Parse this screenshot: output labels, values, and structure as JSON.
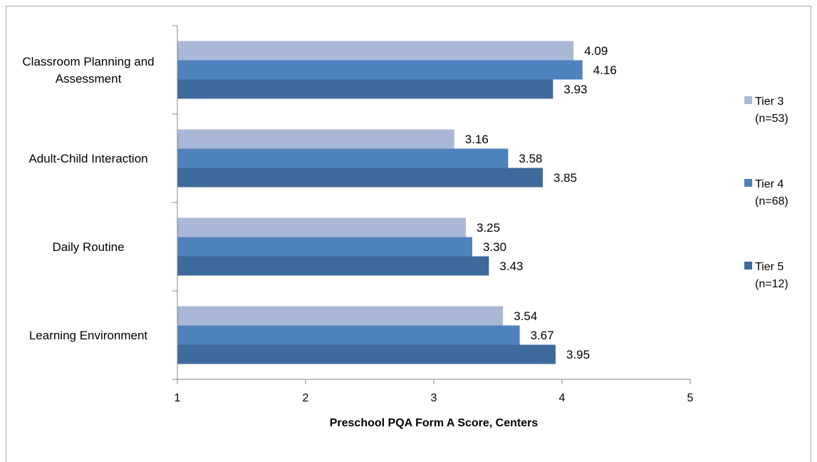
{
  "chart_data": {
    "type": "bar",
    "orientation": "horizontal",
    "categories": [
      [
        "Classroom Planning and",
        "Assessment"
      ],
      [
        "Adult-Child Interaction"
      ],
      [
        "Daily Routine"
      ],
      [
        "Learning Environment"
      ]
    ],
    "series": [
      {
        "name": "Tier 3",
        "sublabel": "(n=53)",
        "color": "#aab8d8",
        "values": [
          4.09,
          3.16,
          3.25,
          3.54
        ],
        "labels": [
          "4.09",
          "3.16",
          "3.25",
          "3.54"
        ]
      },
      {
        "name": "Tier 4",
        "sublabel": "(n=68)",
        "color": "#4f81bd",
        "values": [
          4.16,
          3.58,
          3.3,
          3.67
        ],
        "labels": [
          "4.16",
          "3.58",
          "3.30",
          "3.67"
        ]
      },
      {
        "name": "Tier 5",
        "sublabel": "(n=12)",
        "color": "#3e6a9c",
        "values": [
          3.93,
          3.85,
          3.43,
          3.95
        ],
        "labels": [
          "3.93",
          "3.85",
          "3.43",
          "3.95"
        ]
      }
    ],
    "xlim": [
      1,
      5
    ],
    "xticks": [
      "1",
      "2",
      "3",
      "4",
      "5"
    ],
    "xlabel": "Preschool PQA Form A Score, Centers",
    "legend_position": "right",
    "grid": false
  }
}
